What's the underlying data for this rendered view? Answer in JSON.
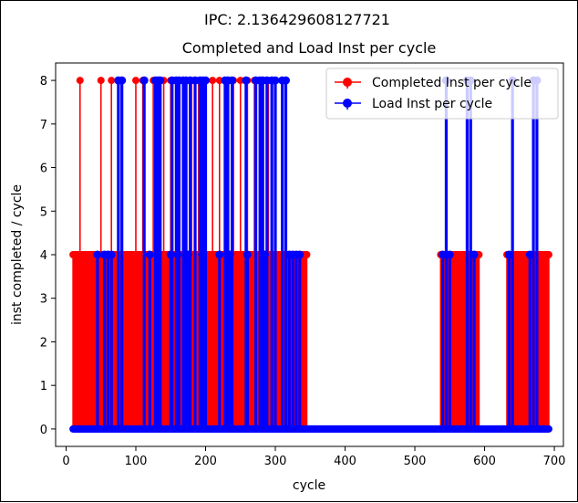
{
  "figure": {
    "suptitle": "IPC: 2.136429608127721"
  },
  "chart_data": {
    "type": "stem",
    "title": "Completed and Load Inst per cycle",
    "xlabel": "cycle",
    "ylabel": "inst completed / cycle",
    "xlim": [
      -15,
      713
    ],
    "ylim": [
      -0.4,
      8.4
    ],
    "xticks": [
      0,
      100,
      200,
      300,
      400,
      500,
      600,
      700
    ],
    "yticks": [
      0,
      1,
      2,
      3,
      4,
      5,
      6,
      7,
      8
    ],
    "legend_position": "upper right",
    "series": [
      {
        "name": "Completed Inst per cycle",
        "color": "#ff0000",
        "x_range": [
          10,
          692
        ],
        "active_ranges": [
          [
            10,
            345
          ],
          [
            537,
            592
          ],
          [
            632,
            692
          ]
        ],
        "peak_x": [
          20,
          50,
          65,
          80,
          100,
          110,
          125,
          130,
          140,
          150,
          160,
          170,
          180,
          190,
          200,
          210,
          220,
          230,
          240,
          250,
          260,
          270,
          280,
          290,
          300,
          545,
          580,
          640
        ],
        "peak_value": 8,
        "base_value": 4
      },
      {
        "name": "Load Inst per cycle",
        "color": "#0000ff",
        "x_range": [
          10,
          692
        ],
        "spikes_4": [
          45,
          55,
          60,
          65,
          120,
          135,
          150,
          160,
          175,
          185,
          195,
          220,
          235,
          260,
          285,
          300,
          320,
          325,
          330,
          335,
          540,
          550,
          575,
          580,
          585,
          635,
          640,
          665,
          675
        ],
        "spikes_8": [
          75,
          80,
          112,
          128,
          132,
          135,
          152,
          158,
          162,
          168,
          172,
          178,
          185,
          192,
          196,
          200,
          228,
          232,
          238,
          258,
          272,
          278,
          282,
          288,
          295,
          300,
          310,
          315,
          545,
          575,
          580,
          640,
          670,
          675
        ],
        "zero_value": 0
      }
    ]
  }
}
